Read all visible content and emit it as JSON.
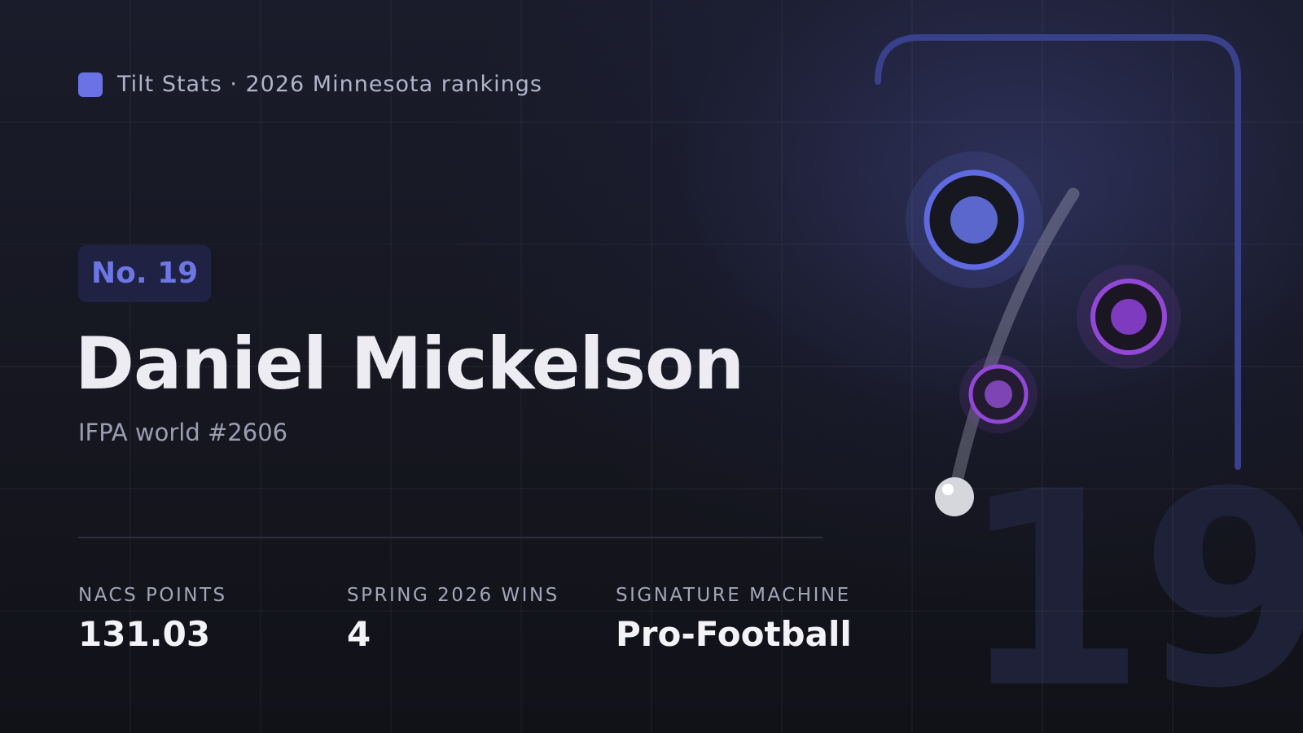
{
  "brand": "Tilt Stats · 2026 Minnesota rankings",
  "rank_badge": "No. 19",
  "name": "Daniel Mickelson",
  "subtitle": "IFPA world #2606",
  "stats": [
    {
      "label": "NACS POINTS",
      "value": "131.03"
    },
    {
      "label": "SPRING 2026 WINS",
      "value": "4"
    },
    {
      "label": "SIGNATURE MACHINE",
      "value": "Pro-Football"
    }
  ],
  "watermark": "19"
}
